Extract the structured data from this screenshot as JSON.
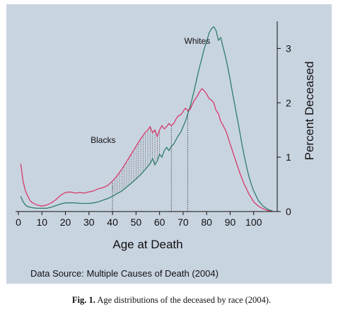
{
  "chart_data": {
    "type": "line",
    "xlabel": "Age at Death",
    "ylabel": "Percent Deceased",
    "xlim": [
      0,
      110
    ],
    "ylim": [
      0,
      3.5
    ],
    "xticks": [
      0,
      10,
      20,
      30,
      40,
      50,
      60,
      70,
      80,
      90,
      100
    ],
    "yticks": [
      0,
      1,
      2,
      3
    ],
    "ytick_side": "right",
    "source_note": "Data Source: Multiple Causes of Death (2004)",
    "series": [
      {
        "name": "Whites",
        "color": "#2e7d6b",
        "x": [
          1,
          2,
          3,
          4,
          5,
          6,
          8,
          10,
          12,
          14,
          16,
          18,
          20,
          22,
          24,
          26,
          28,
          30,
          32,
          34,
          36,
          38,
          40,
          42,
          44,
          46,
          48,
          50,
          52,
          54,
          56,
          57,
          58,
          59,
          60,
          61,
          62,
          63,
          64,
          65,
          66,
          67,
          68,
          69,
          70,
          71,
          72,
          73,
          74,
          75,
          76,
          77,
          78,
          79,
          80,
          81,
          82,
          83,
          84,
          85,
          86,
          87,
          88,
          89,
          90,
          91,
          92,
          93,
          94,
          95,
          96,
          97,
          98,
          99,
          100,
          102,
          104,
          106,
          108
        ],
        "y": [
          0.28,
          0.18,
          0.12,
          0.09,
          0.08,
          0.07,
          0.06,
          0.06,
          0.06,
          0.08,
          0.11,
          0.14,
          0.16,
          0.16,
          0.16,
          0.15,
          0.15,
          0.15,
          0.16,
          0.18,
          0.21,
          0.24,
          0.28,
          0.33,
          0.38,
          0.45,
          0.52,
          0.6,
          0.68,
          0.78,
          0.88,
          0.97,
          0.86,
          0.93,
          1.05,
          1.0,
          1.12,
          1.18,
          1.12,
          1.2,
          1.24,
          1.32,
          1.4,
          1.46,
          1.56,
          1.66,
          1.8,
          1.93,
          2.1,
          2.28,
          2.48,
          2.66,
          2.82,
          3.0,
          3.12,
          3.28,
          3.36,
          3.4,
          3.33,
          3.15,
          3.2,
          3.02,
          2.85,
          2.65,
          2.42,
          2.18,
          1.95,
          1.72,
          1.48,
          1.24,
          1.02,
          0.82,
          0.64,
          0.5,
          0.38,
          0.2,
          0.1,
          0.04,
          0.01
        ]
      },
      {
        "name": "Blacks",
        "color": "#d63a6a",
        "x": [
          1,
          2,
          3,
          4,
          5,
          6,
          8,
          10,
          12,
          14,
          16,
          18,
          20,
          22,
          24,
          26,
          28,
          30,
          32,
          34,
          36,
          38,
          40,
          42,
          44,
          46,
          48,
          50,
          52,
          54,
          55,
          56,
          57,
          58,
          59,
          60,
          61,
          62,
          63,
          64,
          65,
          66,
          67,
          68,
          69,
          70,
          71,
          72,
          73,
          74,
          75,
          76,
          77,
          78,
          79,
          80,
          81,
          82,
          83,
          84,
          85,
          86,
          87,
          88,
          89,
          90,
          92,
          94,
          96,
          98,
          100,
          102,
          104,
          106,
          108
        ],
        "y": [
          0.88,
          0.55,
          0.38,
          0.28,
          0.2,
          0.16,
          0.12,
          0.1,
          0.12,
          0.16,
          0.22,
          0.3,
          0.35,
          0.36,
          0.34,
          0.35,
          0.34,
          0.36,
          0.38,
          0.42,
          0.44,
          0.48,
          0.56,
          0.66,
          0.78,
          0.92,
          1.06,
          1.2,
          1.34,
          1.46,
          1.5,
          1.56,
          1.45,
          1.5,
          1.38,
          1.5,
          1.58,
          1.52,
          1.56,
          1.62,
          1.58,
          1.62,
          1.7,
          1.76,
          1.78,
          1.84,
          1.9,
          1.86,
          1.88,
          1.98,
          2.06,
          2.12,
          2.2,
          2.26,
          2.22,
          2.16,
          2.08,
          2.05,
          2.0,
          1.86,
          1.8,
          1.66,
          1.58,
          1.5,
          1.38,
          1.24,
          0.98,
          0.72,
          0.5,
          0.32,
          0.18,
          0.1,
          0.05,
          0.02,
          0.0
        ]
      }
    ],
    "annotations": {
      "dotted_vertical_lines": [
        40,
        65,
        72
      ],
      "hatched_region": [
        40,
        60
      ]
    }
  },
  "caption": {
    "label": "Fig. 1.",
    "text": "Age distributions of the deceased by race (2004)."
  }
}
